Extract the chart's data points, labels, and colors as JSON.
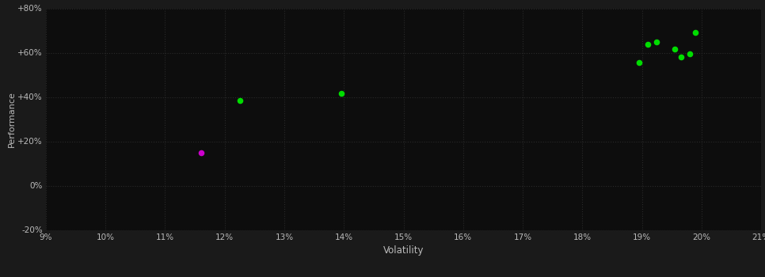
{
  "background_color": "#1a1a1a",
  "plot_bg_color": "#0d0d0d",
  "grid_color": "#2a2a2a",
  "text_color": "#bbbbbb",
  "xlabel": "Volatility",
  "ylabel": "Performance",
  "xlim": [
    0.09,
    0.21
  ],
  "ylim": [
    -0.2,
    0.8
  ],
  "xticks": [
    0.09,
    0.1,
    0.11,
    0.12,
    0.13,
    0.14,
    0.15,
    0.16,
    0.17,
    0.18,
    0.19,
    0.2,
    0.21
  ],
  "yticks": [
    -0.2,
    0.0,
    0.2,
    0.4,
    0.6,
    0.8
  ],
  "green_points": [
    [
      0.1225,
      0.385
    ],
    [
      0.1395,
      0.415
    ],
    [
      0.1895,
      0.555
    ],
    [
      0.191,
      0.638
    ],
    [
      0.1925,
      0.648
    ],
    [
      0.1955,
      0.615
    ],
    [
      0.1965,
      0.58
    ],
    [
      0.198,
      0.595
    ],
    [
      0.199,
      0.69
    ]
  ],
  "magenta_points": [
    [
      0.116,
      0.148
    ]
  ],
  "point_size": 20,
  "marker": "o"
}
